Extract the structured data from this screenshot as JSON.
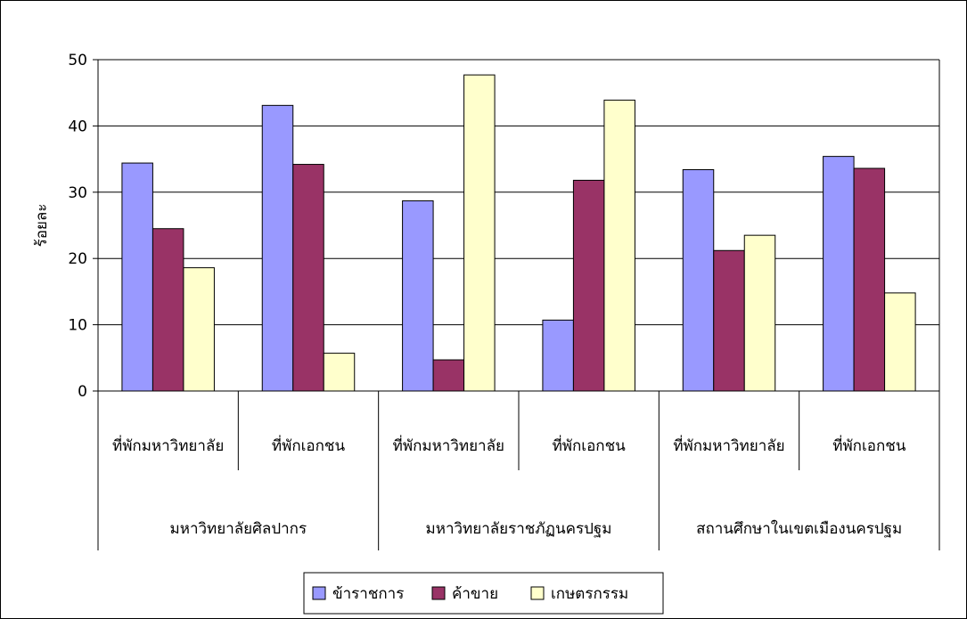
{
  "chart_data": {
    "type": "bar",
    "ylabel": "ร้อยละ",
    "ylim": [
      0,
      50
    ],
    "yticks": [
      0,
      10,
      20,
      30,
      40,
      50
    ],
    "grid": true,
    "legend_position": "bottom",
    "categories": [
      "ที่พักมหาวิทยาลัย",
      "ที่พักเอกชน",
      "ที่พักมหาวิทยาลัย",
      "ที่พักเอกชน",
      "ที่พักมหาวิทยาลัย",
      "ที่พักเอกชน"
    ],
    "groups": [
      "มหาวิทยาลัยศิลปากร",
      "มหาวิทยาลัยราชภัฏนครปฐม",
      "สถานศึกษาในเขตเมืองนครปฐม"
    ],
    "series": [
      {
        "name": "ข้าราชการ",
        "color": "#9999ff",
        "values": [
          34.4,
          43.1,
          28.7,
          10.7,
          33.4,
          35.4
        ]
      },
      {
        "name": "ค้าขาย",
        "color": "#993366",
        "values": [
          24.5,
          34.2,
          4.7,
          31.8,
          21.2,
          33.6
        ]
      },
      {
        "name": "เกษตรกรรม",
        "color": "#ffffcc",
        "values": [
          18.6,
          5.7,
          47.7,
          43.9,
          23.5,
          14.8
        ]
      }
    ]
  }
}
